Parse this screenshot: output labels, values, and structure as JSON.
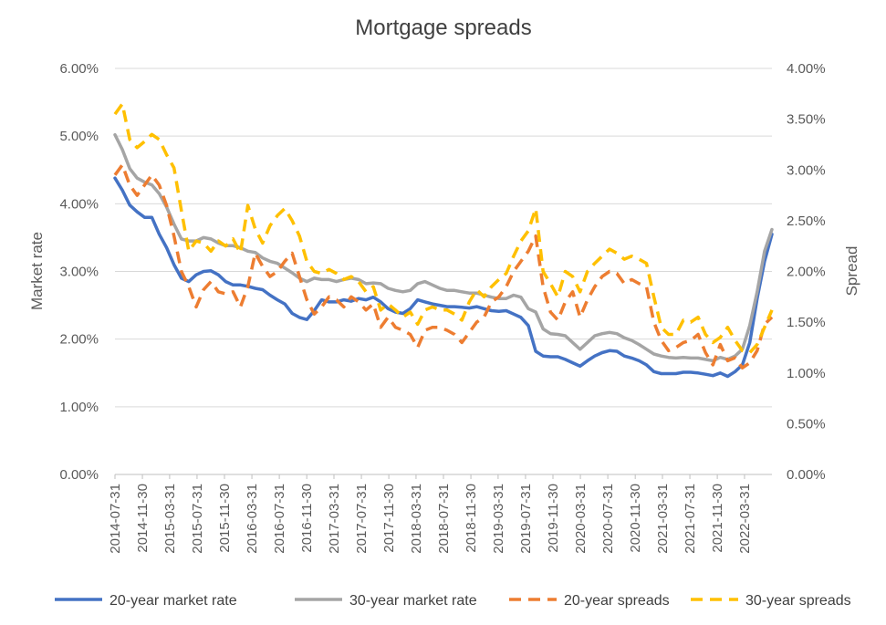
{
  "chart_data": {
    "type": "line",
    "title": "Mortgage spreads",
    "y_left": {
      "label": "Market rate",
      "ylim": [
        0,
        6
      ],
      "ticks": [
        "0.00%",
        "1.00%",
        "2.00%",
        "3.00%",
        "4.00%",
        "5.00%",
        "6.00%"
      ]
    },
    "y_right": {
      "label": "Spread",
      "ylim": [
        0,
        4
      ],
      "ticks": [
        "0.00%",
        "0.50%",
        "1.00%",
        "1.50%",
        "2.00%",
        "2.50%",
        "3.00%",
        "3.50%",
        "4.00%"
      ]
    },
    "x_tick_labels": [
      "2014-07-31",
      "2014-11-30",
      "2015-03-31",
      "2015-07-31",
      "2015-11-30",
      "2016-03-31",
      "2016-07-31",
      "2016-11-30",
      "2017-03-31",
      "2017-07-31",
      "2017-11-30",
      "2018-03-31",
      "2018-07-31",
      "2018-11-30",
      "2019-03-31",
      "2019-07-31",
      "2019-11-30",
      "2020-03-31",
      "2020-07-31",
      "2020-11-30",
      "2021-03-31",
      "2021-07-31",
      "2021-11-30",
      "2022-03-31"
    ],
    "x_start": "2014-07-31",
    "x_end": "2022-07-31",
    "gridlines": true,
    "legend_position": "bottom",
    "series": [
      {
        "name": "20-year market rate",
        "axis": "left",
        "style": "solid",
        "color": "#4472C4",
        "values": [
          4.38,
          4.2,
          3.98,
          3.88,
          3.8,
          3.8,
          3.55,
          3.35,
          3.1,
          2.9,
          2.85,
          2.95,
          3.0,
          3.01,
          2.95,
          2.85,
          2.8,
          2.8,
          2.78,
          2.75,
          2.73,
          2.65,
          2.58,
          2.52,
          2.38,
          2.32,
          2.29,
          2.42,
          2.58,
          2.55,
          2.55,
          2.58,
          2.56,
          2.6,
          2.58,
          2.62,
          2.55,
          2.45,
          2.4,
          2.38,
          2.45,
          2.58,
          2.55,
          2.52,
          2.5,
          2.48,
          2.48,
          2.47,
          2.46,
          2.48,
          2.45,
          2.42,
          2.41,
          2.42,
          2.37,
          2.32,
          2.2,
          1.82,
          1.75,
          1.74,
          1.74,
          1.7,
          1.65,
          1.6,
          1.68,
          1.75,
          1.8,
          1.83,
          1.82,
          1.75,
          1.72,
          1.68,
          1.62,
          1.52,
          1.49,
          1.49,
          1.49,
          1.51,
          1.51,
          1.5,
          1.48,
          1.46,
          1.5,
          1.45,
          1.52,
          1.62,
          1.95,
          2.6,
          3.15,
          3.55
        ]
      },
      {
        "name": "30-year market rate",
        "axis": "left",
        "style": "solid",
        "color": "#A5A5A5",
        "values": [
          5.02,
          4.8,
          4.52,
          4.38,
          4.32,
          4.28,
          4.15,
          3.95,
          3.7,
          3.48,
          3.45,
          3.45,
          3.5,
          3.48,
          3.42,
          3.38,
          3.38,
          3.35,
          3.3,
          3.28,
          3.2,
          3.15,
          3.12,
          3.05,
          2.98,
          2.9,
          2.85,
          2.9,
          2.88,
          2.88,
          2.85,
          2.88,
          2.9,
          2.88,
          2.82,
          2.83,
          2.82,
          2.75,
          2.72,
          2.7,
          2.72,
          2.82,
          2.85,
          2.8,
          2.75,
          2.72,
          2.72,
          2.7,
          2.68,
          2.68,
          2.65,
          2.62,
          2.6,
          2.6,
          2.65,
          2.62,
          2.45,
          2.4,
          2.15,
          2.08,
          2.07,
          2.05,
          1.95,
          1.85,
          1.95,
          2.05,
          2.08,
          2.1,
          2.08,
          2.02,
          1.98,
          1.92,
          1.85,
          1.78,
          1.75,
          1.73,
          1.72,
          1.73,
          1.72,
          1.72,
          1.7,
          1.68,
          1.73,
          1.7,
          1.75,
          1.85,
          2.2,
          2.7,
          3.3,
          3.62
        ]
      },
      {
        "name": "20-year spreads",
        "axis": "right",
        "style": "dashed",
        "color": "#ED7D31",
        "values": [
          2.95,
          3.05,
          2.85,
          2.75,
          2.85,
          2.95,
          2.85,
          2.65,
          2.35,
          2.0,
          1.85,
          1.65,
          1.82,
          1.9,
          1.8,
          1.78,
          1.8,
          1.65,
          1.85,
          2.18,
          2.05,
          1.95,
          2.0,
          2.1,
          2.18,
          1.95,
          1.72,
          1.58,
          1.65,
          1.75,
          1.72,
          1.65,
          1.75,
          1.7,
          1.62,
          1.68,
          1.45,
          1.55,
          1.45,
          1.42,
          1.38,
          1.25,
          1.42,
          1.45,
          1.45,
          1.42,
          1.38,
          1.3,
          1.4,
          1.5,
          1.55,
          1.7,
          1.75,
          1.85,
          2.0,
          2.1,
          2.2,
          2.35,
          1.85,
          1.6,
          1.52,
          1.7,
          1.8,
          1.55,
          1.72,
          1.85,
          1.95,
          2.0,
          1.98,
          1.88,
          1.92,
          1.88,
          1.85,
          1.5,
          1.32,
          1.22,
          1.25,
          1.3,
          1.32,
          1.38,
          1.2,
          1.08,
          1.28,
          1.12,
          1.15,
          1.05,
          1.1,
          1.22,
          1.48,
          1.55
        ]
      },
      {
        "name": "30-year spreads",
        "axis": "right",
        "style": "dashed",
        "color": "#FFC000",
        "values": [
          3.55,
          3.65,
          3.3,
          3.22,
          3.28,
          3.35,
          3.3,
          3.15,
          3.02,
          2.6,
          2.2,
          2.3,
          2.28,
          2.2,
          2.3,
          2.25,
          2.32,
          2.18,
          2.65,
          2.42,
          2.28,
          2.45,
          2.55,
          2.62,
          2.5,
          2.35,
          2.1,
          2.0,
          1.98,
          2.02,
          1.98,
          1.92,
          1.95,
          1.9,
          1.8,
          1.85,
          1.62,
          1.68,
          1.62,
          1.55,
          1.6,
          1.48,
          1.62,
          1.65,
          1.62,
          1.62,
          1.58,
          1.52,
          1.7,
          1.82,
          1.75,
          1.85,
          1.92,
          1.98,
          2.15,
          2.3,
          2.4,
          2.62,
          2.0,
          1.88,
          1.75,
          2.0,
          1.95,
          1.8,
          2.0,
          2.08,
          2.15,
          2.22,
          2.18,
          2.12,
          2.15,
          2.12,
          2.08,
          1.75,
          1.45,
          1.38,
          1.38,
          1.52,
          1.5,
          1.55,
          1.38,
          1.3,
          1.35,
          1.45,
          1.32,
          1.22,
          1.2,
          1.28,
          1.45,
          1.62
        ]
      }
    ]
  }
}
